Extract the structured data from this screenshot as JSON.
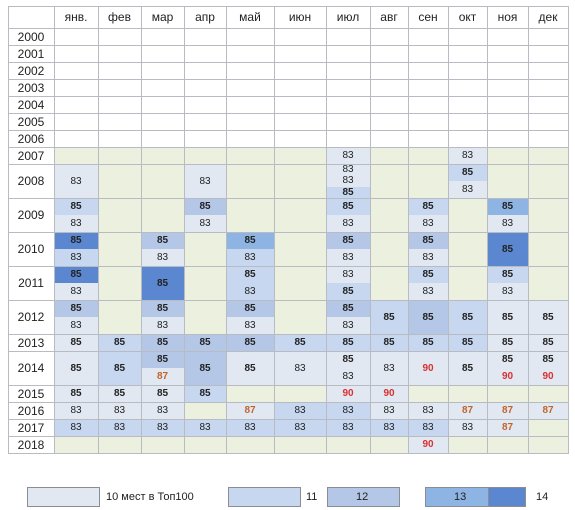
{
  "months": [
    "янв.",
    "фев",
    "мар",
    "апр",
    "май",
    "июн",
    "июл",
    "авг",
    "сен",
    "окт",
    "ноя",
    "дек"
  ],
  "years": [
    "2000",
    "2001",
    "2002",
    "2003",
    "2004",
    "2005",
    "2006",
    "2007",
    "2008",
    "2009",
    "2010",
    "2011",
    "2012",
    "2013",
    "2014",
    "2015",
    "2016",
    "2017",
    "2018"
  ],
  "colors": {
    "empty_pre2007": "#ffffff",
    "empty": "#ebf1de",
    "l10": "#e2e8f2",
    "l11": "#c6d7ef",
    "l12": "#b4c7e7",
    "l13": "#8eb4e3",
    "l14": "#5b87d0",
    "text_normal": "#222222",
    "text_87": "#c0652a",
    "text_90": "#d83030",
    "border": "#b8bcc2"
  },
  "legend": [
    {
      "label": "10 мест в Топ100",
      "level": "l10"
    },
    {
      "label": "11",
      "level": "l11"
    },
    {
      "label": "12",
      "level": "l12"
    },
    {
      "label": "13",
      "level": "l13"
    },
    {
      "label": "14",
      "level": "l14"
    }
  ],
  "cells": [
    {
      "year": "2007",
      "month": "июл",
      "values": [
        "83"
      ],
      "level": "l10"
    },
    {
      "year": "2007",
      "month": "окт",
      "values": [
        "83"
      ],
      "level": "l10"
    },
    {
      "year": "2008",
      "month": "янв.",
      "values": [
        "83"
      ],
      "level": "l10"
    },
    {
      "year": "2008",
      "month": "апр",
      "values": [
        "83"
      ],
      "level": "l10"
    },
    {
      "year": "2008",
      "month": "июл",
      "values": [
        "83",
        "83",
        "85"
      ],
      "levels": [
        "l10",
        "l10",
        "l11"
      ]
    },
    {
      "year": "2008",
      "month": "окт",
      "values": [
        "85",
        "83"
      ],
      "levels": [
        "l11",
        "l10"
      ]
    },
    {
      "year": "2009",
      "month": "янв.",
      "values": [
        "85",
        "83"
      ],
      "levels": [
        "l11",
        "l10"
      ]
    },
    {
      "year": "2009",
      "month": "апр",
      "values": [
        "85",
        "83"
      ],
      "levels": [
        "l12",
        "l10"
      ]
    },
    {
      "year": "2009",
      "month": "июл",
      "values": [
        "85",
        "83"
      ],
      "levels": [
        "l11",
        "l10"
      ]
    },
    {
      "year": "2009",
      "month": "сен",
      "values": [
        "85",
        "83"
      ],
      "levels": [
        "l11",
        "l10"
      ]
    },
    {
      "year": "2009",
      "month": "ноя",
      "values": [
        "85",
        "83"
      ],
      "levels": [
        "l13",
        "l10"
      ]
    },
    {
      "year": "2010",
      "month": "янв.",
      "values": [
        "85",
        "83"
      ],
      "levels": [
        "l14",
        "l11"
      ]
    },
    {
      "year": "2010",
      "month": "мар",
      "values": [
        "85",
        "83"
      ],
      "levels": [
        "l12",
        "l10"
      ]
    },
    {
      "year": "2010",
      "month": "май",
      "values": [
        "85",
        "83"
      ],
      "levels": [
        "l13",
        "l11"
      ]
    },
    {
      "year": "2010",
      "month": "июл",
      "values": [
        "85",
        "83"
      ],
      "levels": [
        "l12",
        "l10"
      ]
    },
    {
      "year": "2010",
      "month": "сен",
      "values": [
        "85",
        "83"
      ],
      "levels": [
        "l12",
        "l10"
      ]
    },
    {
      "year": "2010",
      "month": "ноя",
      "values": [
        "85"
      ],
      "level": "l14"
    },
    {
      "year": "2011",
      "month": "янв.",
      "values": [
        "85",
        "83"
      ],
      "levels": [
        "l14",
        "l10"
      ]
    },
    {
      "year": "2011",
      "month": "мар",
      "values": [
        "85"
      ],
      "level": "l14"
    },
    {
      "year": "2011",
      "month": "май",
      "values": [
        "85",
        "83"
      ],
      "levels": [
        "l11",
        "l11"
      ]
    },
    {
      "year": "2011",
      "month": "июл",
      "values": [
        "83",
        "85"
      ],
      "levels": [
        "l10",
        "l11"
      ]
    },
    {
      "year": "2011",
      "month": "сен",
      "values": [
        "85",
        "83"
      ],
      "levels": [
        "l11",
        "l10"
      ]
    },
    {
      "year": "2011",
      "month": "ноя",
      "values": [
        "85",
        "83"
      ],
      "levels": [
        "l11",
        "l10"
      ]
    },
    {
      "year": "2012",
      "month": "янв.",
      "values": [
        "85",
        "83"
      ],
      "levels": [
        "l12",
        "l10"
      ]
    },
    {
      "year": "2012",
      "month": "мар",
      "values": [
        "85",
        "83"
      ],
      "levels": [
        "l12",
        "l10"
      ]
    },
    {
      "year": "2012",
      "month": "май",
      "values": [
        "85",
        "83"
      ],
      "levels": [
        "l12",
        "l10"
      ]
    },
    {
      "year": "2012",
      "month": "июл",
      "values": [
        "85",
        "83"
      ],
      "levels": [
        "l12",
        "l10"
      ]
    },
    {
      "year": "2012",
      "month": "авг",
      "values": [
        "85"
      ],
      "level": "l11"
    },
    {
      "year": "2012",
      "month": "сен",
      "values": [
        "85"
      ],
      "level": "l12"
    },
    {
      "year": "2012",
      "month": "окт",
      "values": [
        "85"
      ],
      "level": "l11"
    },
    {
      "year": "2012",
      "month": "ноя",
      "values": [
        "85"
      ],
      "level": "l10"
    },
    {
      "year": "2012",
      "month": "дек",
      "values": [
        "85"
      ],
      "level": "l10"
    },
    {
      "year": "2013",
      "month": "янв.",
      "values": [
        "85"
      ],
      "level": "l10"
    },
    {
      "year": "2013",
      "month": "фев",
      "values": [
        "85"
      ],
      "level": "l11"
    },
    {
      "year": "2013",
      "month": "мар",
      "values": [
        "85"
      ],
      "level": "l12"
    },
    {
      "year": "2013",
      "month": "апр",
      "values": [
        "85"
      ],
      "level": "l12"
    },
    {
      "year": "2013",
      "month": "май",
      "values": [
        "85"
      ],
      "level": "l12"
    },
    {
      "year": "2013",
      "month": "июн",
      "values": [
        "85"
      ],
      "level": "l11"
    },
    {
      "year": "2013",
      "month": "июл",
      "values": [
        "85"
      ],
      "level": "l11"
    },
    {
      "year": "2013",
      "month": "авг",
      "values": [
        "85"
      ],
      "level": "l11"
    },
    {
      "year": "2013",
      "month": "сен",
      "values": [
        "85"
      ],
      "level": "l11"
    },
    {
      "year": "2013",
      "month": "окт",
      "values": [
        "85"
      ],
      "level": "l11"
    },
    {
      "year": "2013",
      "month": "ноя",
      "values": [
        "85"
      ],
      "level": "l10"
    },
    {
      "year": "2013",
      "month": "дек",
      "values": [
        "85"
      ],
      "level": "l10"
    },
    {
      "year": "2014",
      "month": "янв.",
      "values": [
        "85"
      ],
      "level": "l10"
    },
    {
      "year": "2014",
      "month": "фев",
      "values": [
        "85"
      ],
      "level": "l11"
    },
    {
      "year": "2014",
      "month": "мар",
      "values": [
        "85",
        "87"
      ],
      "levels": [
        "l12",
        "l10"
      ]
    },
    {
      "year": "2014",
      "month": "апр",
      "values": [
        "85"
      ],
      "level": "l12"
    },
    {
      "year": "2014",
      "month": "май",
      "values": [
        "85"
      ],
      "level": "l10"
    },
    {
      "year": "2014",
      "month": "июн",
      "values": [
        "83"
      ],
      "level": "l10"
    },
    {
      "year": "2014",
      "month": "июл",
      "values": [
        "85",
        "83"
      ],
      "levels": [
        "l10",
        "l10"
      ]
    },
    {
      "year": "2014",
      "month": "авг",
      "values": [
        "83"
      ],
      "level": "l10"
    },
    {
      "year": "2014",
      "month": "сен",
      "values": [
        "90"
      ],
      "level": "l10"
    },
    {
      "year": "2014",
      "month": "окт",
      "values": [
        "85"
      ],
      "level": "l10"
    },
    {
      "year": "2014",
      "month": "ноя",
      "values": [
        "85",
        "90"
      ],
      "levels": [
        "l10",
        "l10"
      ]
    },
    {
      "year": "2014",
      "month": "дек",
      "values": [
        "85",
        "90"
      ],
      "levels": [
        "l10",
        "l10"
      ]
    },
    {
      "year": "2015",
      "month": "янв.",
      "values": [
        "85"
      ],
      "level": "l10"
    },
    {
      "year": "2015",
      "month": "фев",
      "values": [
        "85"
      ],
      "level": "l10"
    },
    {
      "year": "2015",
      "month": "мар",
      "values": [
        "85"
      ],
      "level": "l10"
    },
    {
      "year": "2015",
      "month": "апр",
      "values": [
        "85"
      ],
      "level": "l11"
    },
    {
      "year": "2015",
      "month": "июл",
      "values": [
        "90"
      ],
      "level": "l10"
    },
    {
      "year": "2015",
      "month": "авг",
      "values": [
        "90"
      ],
      "level": "l10"
    },
    {
      "year": "2016",
      "month": "янв.",
      "values": [
        "83"
      ],
      "level": "l10"
    },
    {
      "year": "2016",
      "month": "фев",
      "values": [
        "83"
      ],
      "level": "l10"
    },
    {
      "year": "2016",
      "month": "мар",
      "values": [
        "83"
      ],
      "level": "l10"
    },
    {
      "year": "2016",
      "month": "май",
      "values": [
        "87"
      ],
      "level": "l10"
    },
    {
      "year": "2016",
      "month": "июн",
      "values": [
        "83"
      ],
      "level": "l11"
    },
    {
      "year": "2016",
      "month": "июл",
      "values": [
        "83"
      ],
      "level": "l11"
    },
    {
      "year": "2016",
      "month": "авг",
      "values": [
        "83"
      ],
      "level": "l10"
    },
    {
      "year": "2016",
      "month": "сен",
      "values": [
        "83"
      ],
      "level": "l10"
    },
    {
      "year": "2016",
      "month": "окт",
      "values": [
        "87"
      ],
      "level": "l10"
    },
    {
      "year": "2016",
      "month": "ноя",
      "values": [
        "87"
      ],
      "level": "l10"
    },
    {
      "year": "2016",
      "month": "дек",
      "values": [
        "87"
      ],
      "level": "l10"
    },
    {
      "year": "2017",
      "month": "янв.",
      "values": [
        "83"
      ],
      "level": "l11"
    },
    {
      "year": "2017",
      "month": "фев",
      "values": [
        "83"
      ],
      "level": "l11"
    },
    {
      "year": "2017",
      "month": "мар",
      "values": [
        "83"
      ],
      "level": "l11"
    },
    {
      "year": "2017",
      "month": "апр",
      "values": [
        "83"
      ],
      "level": "l11"
    },
    {
      "year": "2017",
      "month": "май",
      "values": [
        "83"
      ],
      "level": "l11"
    },
    {
      "year": "2017",
      "month": "июн",
      "values": [
        "83"
      ],
      "level": "l11"
    },
    {
      "year": "2017",
      "month": "июл",
      "values": [
        "83"
      ],
      "level": "l11"
    },
    {
      "year": "2017",
      "month": "авг",
      "values": [
        "83"
      ],
      "level": "l11"
    },
    {
      "year": "2017",
      "month": "сен",
      "values": [
        "83"
      ],
      "level": "l11"
    },
    {
      "year": "2017",
      "month": "окт",
      "values": [
        "83"
      ],
      "level": "l10"
    },
    {
      "year": "2017",
      "month": "ноя",
      "values": [
        "87"
      ],
      "level": "l10"
    },
    {
      "year": "2018",
      "month": "сен",
      "values": [
        "90"
      ],
      "level": "l10"
    }
  ]
}
